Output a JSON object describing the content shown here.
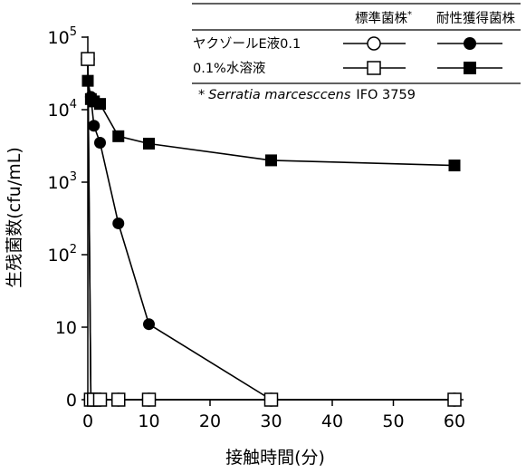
{
  "chart_data": {
    "type": "line",
    "xlabel": "接触時間(分)",
    "ylabel": "生残菌数(cfu/mL)",
    "x_ticks": [
      0,
      10,
      20,
      30,
      40,
      50,
      60
    ],
    "xlim": [
      0,
      60
    ],
    "y_scale": "log-with-zero",
    "y_ticks": [
      {
        "value": 0,
        "label": "0"
      },
      {
        "value": 10,
        "label": "10"
      },
      {
        "value": 100,
        "base": "10",
        "exp": "2"
      },
      {
        "value": 1000,
        "base": "10",
        "exp": "3"
      },
      {
        "value": 10000,
        "base": "10",
        "exp": "4"
      },
      {
        "value": 100000,
        "base": "10",
        "exp": "5"
      }
    ],
    "legend": {
      "col_standard": "標準菌株",
      "col_standard_mark": "*",
      "col_resistant": "耐性獲得菌株",
      "rows": [
        "ヤクゾールE液0.1",
        "0.1%水溶液"
      ]
    },
    "footnote": {
      "mark": "*",
      "organism": "Serratia marcesccens",
      "strain": "IFO 3759"
    },
    "series": [
      {
        "name": "ヤクゾールE液0.1 標準菌株",
        "marker": "circle-open",
        "x": [
          0,
          0.5,
          1,
          2,
          5,
          10,
          30,
          60
        ],
        "y": [
          50000,
          0,
          0,
          0,
          0,
          0,
          0,
          0
        ]
      },
      {
        "name": "ヤクゾールE液0.1 耐性獲得菌株",
        "marker": "circle-filled",
        "x": [
          0,
          0.5,
          1,
          2,
          5,
          10,
          30,
          60
        ],
        "y": [
          25000,
          15000,
          6000,
          3500,
          270,
          11,
          0,
          0
        ]
      },
      {
        "name": "0.1%水溶液 標準菌株",
        "marker": "square-open",
        "x": [
          0,
          0.5,
          1,
          2,
          5,
          10,
          30,
          60
        ],
        "y": [
          50000,
          0,
          0,
          0,
          0,
          0,
          0,
          0
        ]
      },
      {
        "name": "0.1%水溶液 耐性獲得菌株",
        "marker": "square-filled",
        "x": [
          0,
          0.5,
          1,
          2,
          5,
          10,
          30,
          60
        ],
        "y": [
          25000,
          14000,
          13000,
          12000,
          4300,
          3400,
          2000,
          1700
        ]
      }
    ]
  }
}
